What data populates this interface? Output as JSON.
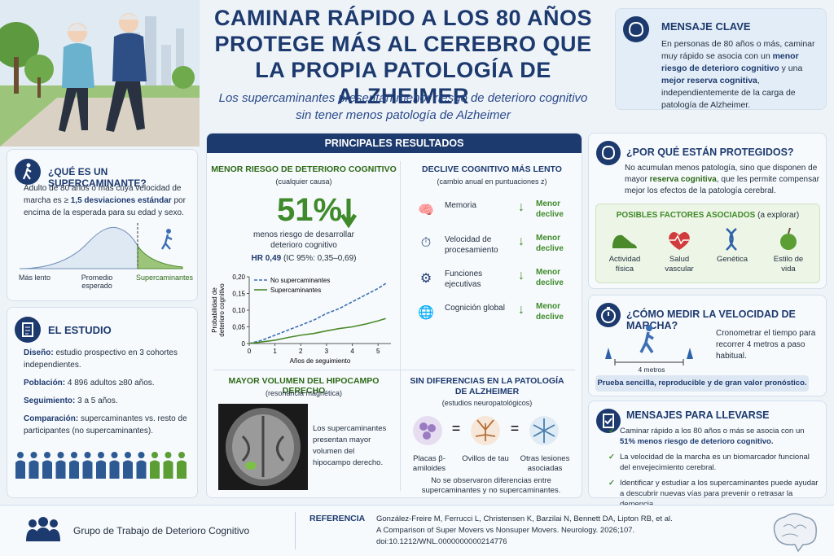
{
  "header": {
    "title_lines": [
      "CAMINAR RÁPIDO A LOS 80 AÑOS",
      "PROTEGE MÁS AL CEREBRO QUE",
      "LA PROPIA PATOLOGÍA DE ALZHEIMER"
    ],
    "subtitle_lines": [
      "Los supercaminantes presentan menor riesgo de deterioro cognitivo",
      "sin tener menos patología de Alzheimer"
    ]
  },
  "key_message": {
    "title": "MENSAJE CLAVE",
    "segments": [
      "En personas de 80 años o más, caminar muy rápido se asocia con un ",
      "menor riesgo de deterioro cognitivo",
      " y una ",
      "mejor reserva cognitiva",
      ", independientemente de la carga de patología de Alzheimer."
    ]
  },
  "supercaminante": {
    "title": "¿QUÉ ES UN SUPERCAMINANTE?",
    "segments": [
      "Adulto de 80 años o más cuya velocidad de marcha es ≥ ",
      "1,5 desviaciones estándar",
      " por encima de la esperada para su edad y sexo."
    ],
    "curve_labels": [
      "Más lento",
      "Promedio esperado",
      "Supercaminantes"
    ]
  },
  "study": {
    "title": "EL ESTUDIO",
    "items": [
      {
        "label": "Diseño:",
        "text": "estudio prospectivo en 3 cohortes independientes."
      },
      {
        "label": "Población:",
        "text": "4 896 adultos ≥80 años."
      },
      {
        "label": "Seguimiento:",
        "text": "3 a 5 años."
      },
      {
        "label": "Comparación:",
        "text": "supercaminantes vs. resto de participantes (no supercaminantes)."
      }
    ]
  },
  "results": {
    "header": "PRINCIPALES RESULTADOS",
    "risk": {
      "title": "MENOR RIESGO DE DETERIORO COGNITIVO",
      "subtitle": "(cualquier causa)",
      "big_number": "51%",
      "description": "menos riesgo de desarrollar deterioro cognitivo",
      "hr": "HR 0,49",
      "ci": "(IC 95%: 0,35–0,69)"
    },
    "risk_chart": {
      "type": "line",
      "x": [
        0,
        0.5,
        1,
        1.5,
        2,
        2.5,
        3,
        3.5,
        4,
        4.5,
        5,
        5.3
      ],
      "series": [
        {
          "name": "No supercaminantes",
          "color": "#3d6fb4",
          "dashed": true,
          "values": [
            0,
            0.01,
            0.025,
            0.04,
            0.055,
            0.07,
            0.09,
            0.105,
            0.125,
            0.145,
            0.165,
            0.18
          ]
        },
        {
          "name": "Supercaminantes",
          "color": "#4a8a2a",
          "dashed": false,
          "values": [
            0,
            0.005,
            0.01,
            0.018,
            0.025,
            0.03,
            0.038,
            0.045,
            0.05,
            0.058,
            0.068,
            0.075
          ]
        }
      ],
      "xlim": [
        0,
        5.5
      ],
      "ylim": [
        0,
        0.2
      ],
      "xticks": [
        0,
        1,
        2,
        3,
        4,
        5
      ],
      "yticks": [
        0,
        {
          "value": 0.05,
          "label": "0,05"
        },
        {
          "value": 0.1,
          "label": "0,10"
        },
        {
          "value": 0.15,
          "label": "0,15"
        },
        {
          "value": 0.2,
          "label": "0,20"
        }
      ],
      "xlabel": "Años de seguimiento",
      "ylabel": "Probabilidad de deterioro cognitivo"
    },
    "decline": {
      "title": "DECLIVE COGNITIVO MÁS LENTO",
      "subtitle": "(cambio anual en puntuaciones z)",
      "rows": [
        {
          "domain": "Memoria",
          "result": "Menor declive"
        },
        {
          "domain": "Velocidad de procesamiento",
          "result": "Menor declive"
        },
        {
          "domain": "Funciones ejecutivas",
          "result": "Menor declive"
        },
        {
          "domain": "Cognición global",
          "result": "Menor declive"
        }
      ]
    },
    "hippocampus": {
      "title": "MAYOR VOLUMEN DEL HIPOCAMPO DERECHO",
      "subtitle": "(resonancia magnética)",
      "text": "Los supercaminantes presentan mayor volumen del hipocampo derecho."
    },
    "pathology": {
      "title": "SIN DIFERENCIAS EN LA PATOLOGÍA DE ALZHEIMER",
      "subtitle": "(estudios neuropatológicos)",
      "items": [
        "Placas β-amiloides",
        "Ovillos de tau",
        "Otras lesiones asociadas"
      ],
      "note": "No se observaron diferencias entre supercaminantes y no supercaminantes."
    }
  },
  "protection": {
    "title": "¿POR QUÉ ESTÁN PROTEGIDOS?",
    "segments": [
      "No acumulan menos patología, sino que disponen de mayor ",
      "reserva cognitiva",
      ", que les permite compensar mejor los efectos de la patología cerebral."
    ],
    "factors_title": "POSIBLES FACTORES ASOCIADOS",
    "factors_note": "(a explorar)",
    "factors": [
      "Actividad física",
      "Salud vascular",
      "Genética",
      "Estilo de vida"
    ]
  },
  "gait": {
    "title": "¿CÓMO MEDIR LA VELOCIDAD DE MARCHA?",
    "text": "Cronometrar el tiempo para recorrer 4 metros a paso habitual.",
    "distance": "4 metros",
    "note": "Prueba sencilla, reproducible y de gran valor pronóstico."
  },
  "takeaways": {
    "title": "MENSAJES PARA LLEVARSE",
    "items": [
      [
        "Caminar rápido a los 80 años o más se asocia con un ",
        "51% menos riesgo de deterioro cognitivo."
      ],
      [
        "La velocidad de la marcha es un biomarcador funcional del envejecimiento cerebral."
      ],
      [
        "Identificar y estudiar a los supercaminantes puede ayudar a descubrir nuevas vías para prevenir o retrasar la demencia."
      ]
    ]
  },
  "footer": {
    "group": "Grupo de Trabajo de Deterioro Cognitivo",
    "reference_label": "REFERENCIA",
    "reference_lines": [
      "González-Freire M, Ferrucci L, Christensen K, Barzilai N, Bennett DA, Lipton RB, et al.",
      "A Comparison of Super Movers vs Nonsuper Movers. Neurology. 2026;107.",
      "doi:10.1212/WNL.0000000000214776"
    ]
  }
}
